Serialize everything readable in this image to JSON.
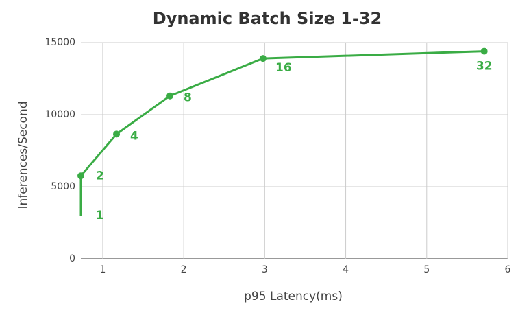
{
  "chart_data": {
    "type": "line",
    "title": "Dynamic Batch Size 1-32",
    "x_label": "p95 Latency(ms)",
    "y_label": "Inferences/Second",
    "x": [
      0.73,
      0.73,
      1.17,
      1.83,
      2.98,
      5.71
    ],
    "series": [
      {
        "name": "Inferences/Second",
        "color": "#3aac45",
        "values": [
          3000,
          5750,
          8650,
          11300,
          13900,
          14400
        ],
        "point_labels": [
          "1",
          "2",
          "4",
          "8",
          "16",
          "32"
        ]
      }
    ],
    "xlim": [
      0.73,
      6
    ],
    "xticks": [
      1,
      2,
      3,
      4,
      5,
      6
    ],
    "ylim": [
      0,
      15000
    ],
    "yticks": [
      0,
      5000,
      10000,
      15000
    ],
    "grid": true
  }
}
